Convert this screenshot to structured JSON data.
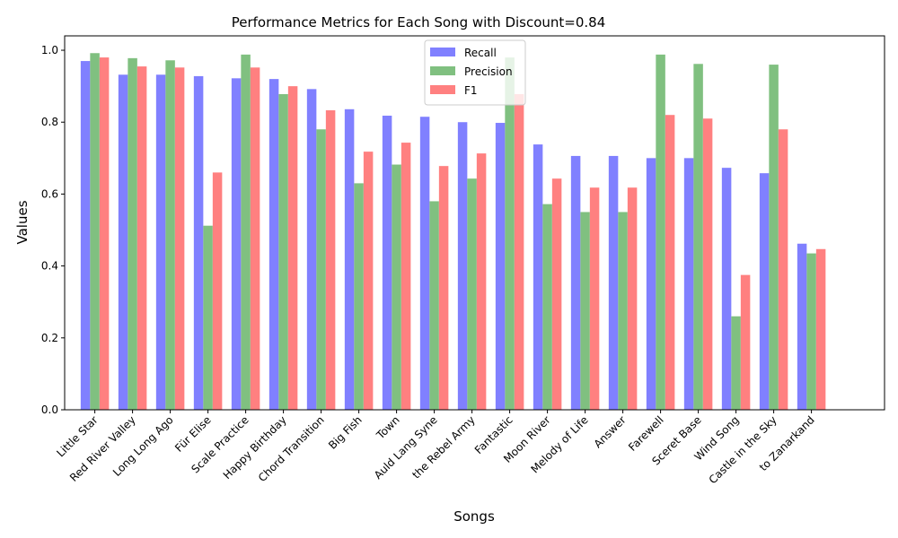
{
  "chart_data": {
    "type": "bar",
    "title": "Performance Metrics for Each Song with Discount=0.84",
    "xlabel": "Songs",
    "ylabel": "Values",
    "ylim": [
      0,
      1.04
    ],
    "yticks": [
      "0.0",
      "0.2",
      "0.4",
      "0.6",
      "0.8",
      "1.0"
    ],
    "ytick_values": [
      0.0,
      0.2,
      0.4,
      0.6,
      0.8,
      1.0
    ],
    "legend_position": "top-center",
    "grid": false,
    "categories": [
      "Little Star",
      "Red River Valley",
      "Long Long Ago",
      "Für Elise",
      "Scale Practice",
      "Happy Birthday",
      "Chord Transition",
      "Big Fish",
      "Town",
      "Auld Lang Syne",
      "the Rebel Army",
      "Fantastic",
      "Moon River",
      "Melody of Life",
      "Answer",
      "Farewell",
      "Sceret Base",
      "Wind Song",
      "Castle in the Sky",
      "to Zanarkand"
    ],
    "series": [
      {
        "name": "Recall",
        "color": "#8080ff",
        "values": [
          0.97,
          0.932,
          0.932,
          0.928,
          0.922,
          0.92,
          0.892,
          0.836,
          0.818,
          0.815,
          0.8,
          0.798,
          0.738,
          0.706,
          0.706,
          0.7,
          0.7,
          0.673,
          0.658,
          0.462
        ]
      },
      {
        "name": "Precision",
        "color": "#80c080",
        "values": [
          0.992,
          0.978,
          0.972,
          0.512,
          0.988,
          0.878,
          0.78,
          0.63,
          0.682,
          0.58,
          0.643,
          0.98,
          0.572,
          0.55,
          0.55,
          0.988,
          0.962,
          0.26,
          0.96,
          0.435
        ]
      },
      {
        "name": "F1",
        "color": "#ff8080",
        "values": [
          0.98,
          0.955,
          0.952,
          0.66,
          0.952,
          0.9,
          0.833,
          0.718,
          0.743,
          0.678,
          0.713,
          0.878,
          0.643,
          0.618,
          0.618,
          0.82,
          0.81,
          0.375,
          0.78,
          0.447
        ]
      }
    ]
  }
}
